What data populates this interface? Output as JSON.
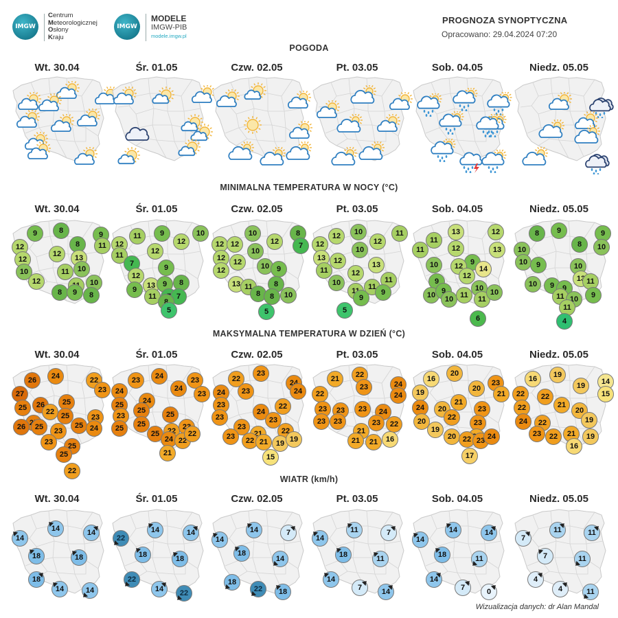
{
  "header": {
    "cmok_logo_text": "IMGW",
    "cmok_lines": [
      {
        "initial": "C",
        "rest": "entrum"
      },
      {
        "initial": "M",
        "rest": "eteorologicznej"
      },
      {
        "initial": "O",
        "rest": "słony"
      },
      {
        "initial": "K",
        "rest": "raju"
      }
    ],
    "modele_logo_text": "IMGW",
    "modele_title": "MODELE",
    "modele_sub": "IMGW-PIB",
    "modele_url": "modele.imgw.pl",
    "title": "PROGNOZA SYNOPTYCZNA",
    "issued": "Opracowano: 29.04.2024 07:20"
  },
  "days": [
    "Wt. 30.04",
    "Śr. 01.05",
    "Czw. 02.05",
    "Pt. 03.05",
    "Sob. 04.05",
    "Niedz. 05.05"
  ],
  "sections": {
    "weather": "POGODA",
    "tmin": "MINIMALNA TEMPERATURA W NOCY (°C)",
    "tmax": "MAKSYMALNA TEMPERATURA W DZIEŃ (°C)",
    "wind": "WIATR (km/h)"
  },
  "colors": {
    "map_fill": "#f1f1f1",
    "map_border": "#c9c9c9",
    "tmin_scale": {
      "4": "#2fbf71",
      "5": "#3ec46c",
      "6": "#4cb94d",
      "7": "#45b851",
      "8": "#68b54a",
      "9": "#76bd4e",
      "10": "#8ac25a",
      "11": "#a6cf62",
      "12": "#b6d86d",
      "13": "#c8e07a",
      "14": "#e8e58a"
    },
    "tmax_scale": {
      "14": "#f5e690",
      "15": "#f7e27a",
      "16": "#f7d974",
      "17": "#f6cf66",
      "19": "#f3c85c",
      "20": "#f2b63c",
      "21": "#f2aa28",
      "22": "#f09e1e",
      "23": "#ef9416",
      "24": "#ea8a10",
      "25": "#e6800e",
      "26": "#e0760c",
      "27": "#d86a0a"
    },
    "wind_scale": {
      "0": "#e8f3fb",
      "4": "#dfeef9",
      "7": "#d4eaf8",
      "11": "#a9d4f0",
      "14": "#8ec6ec",
      "18": "#7ebde8",
      "22": "#3f8cb6"
    }
  },
  "weather": [
    [
      "partly-cloudy",
      "partly-cloudy",
      "partly-cloudy",
      "partly-cloudy",
      "partly-cloudy",
      "partly-cloudy",
      "partly-cloudy",
      "partly-cloudy",
      "partly-cloudy",
      "partly-cloudy"
    ],
    [
      "partly-cloudy",
      "partly-sunny",
      "partly-cloudy",
      "cloudy-dark",
      "partly-sunny",
      "partly-sunny",
      "partly-sunny",
      "partly-sunny"
    ],
    [
      "partly-cloudy",
      "partly-sunny",
      "partly-cloudy",
      "sunny",
      "cloudy",
      "cloudy",
      "cloudy",
      "partly-cloudy"
    ],
    [
      "partly-cloudy",
      "cloudy",
      "partly-cloudy",
      "cloudy",
      "partly-cloudy",
      "cloudy",
      "cloudy"
    ],
    [
      "rain",
      "rain",
      "rain",
      "rain",
      "rain",
      "rain",
      "rain-storm",
      "rain",
      "rain"
    ],
    [
      "partly-cloudy",
      "cloudy-dark-rain",
      "cloudy",
      "partly-cloudy",
      "cloudy",
      "cloudy",
      "cloudy-dark-rain"
    ]
  ],
  "tmin": [
    [
      9,
      8,
      9,
      12,
      8,
      11,
      12,
      12,
      13,
      10,
      11,
      10,
      12,
      11,
      10,
      8,
      9,
      8
    ],
    [
      12,
      11,
      9,
      12,
      10,
      11,
      7,
      12,
      12,
      9,
      13,
      9,
      11,
      7,
      9,
      8,
      7,
      8,
      5
    ],
    [
      12,
      10,
      8,
      12,
      12,
      10,
      7,
      12,
      12,
      10,
      12,
      9,
      13,
      11,
      8,
      8,
      10,
      8,
      5
    ],
    [
      12,
      12,
      10,
      12,
      11,
      10,
      13,
      12,
      13,
      11,
      12,
      11,
      10,
      11,
      11,
      9,
      9,
      5
    ],
    [
      11,
      13,
      12,
      11,
      12,
      13,
      9,
      10,
      9,
      12,
      14,
      10,
      12,
      10,
      9,
      10,
      11,
      11,
      10,
      6
    ],
    [
      8,
      9,
      9,
      10,
      8,
      10,
      10,
      9,
      10,
      13,
      10,
      9,
      11,
      9,
      11,
      10,
      9,
      11,
      4
    ]
  ],
  "tmax": [
    [
      26,
      24,
      22,
      27,
      23,
      25,
      25,
      26,
      22,
      25,
      25,
      23,
      26,
      25,
      23,
      25,
      24,
      23,
      25,
      25,
      22
    ],
    [
      23,
      24,
      23,
      24,
      24,
      23,
      25,
      24,
      23,
      25,
      25,
      25,
      22,
      25,
      23,
      25,
      24,
      22,
      22,
      21
    ],
    [
      22,
      23,
      24,
      24,
      23,
      24,
      23,
      22,
      23,
      24,
      23,
      23,
      21,
      22,
      23,
      22,
      21,
      19,
      19,
      15
    ],
    [
      21,
      22,
      24,
      22,
      23,
      24,
      23,
      23,
      23,
      24,
      23,
      23,
      21,
      23,
      22,
      21,
      21,
      16
    ],
    [
      16,
      20,
      23,
      19,
      20,
      21,
      24,
      20,
      21,
      23,
      20,
      22,
      23,
      19,
      21,
      20,
      22,
      23,
      24,
      17
    ],
    [
      16,
      19,
      14,
      22,
      22,
      19,
      15,
      22,
      21,
      20,
      24,
      22,
      19,
      23,
      22,
      21,
      19,
      16
    ]
  ],
  "wind": [
    [
      14,
      14,
      14,
      18,
      18,
      18,
      14,
      14
    ],
    [
      22,
      14,
      14,
      18,
      18,
      22,
      14,
      22
    ],
    [
      14,
      14,
      7,
      18,
      14,
      18,
      22,
      18
    ],
    [
      14,
      11,
      7,
      18,
      11,
      14,
      7,
      14
    ],
    [
      14,
      14,
      14,
      18,
      11,
      14,
      7,
      0
    ],
    [
      7,
      11,
      11,
      7,
      11,
      4,
      4,
      11
    ]
  ],
  "footer": "Wizualizacja danych: dr Alan Mandal"
}
